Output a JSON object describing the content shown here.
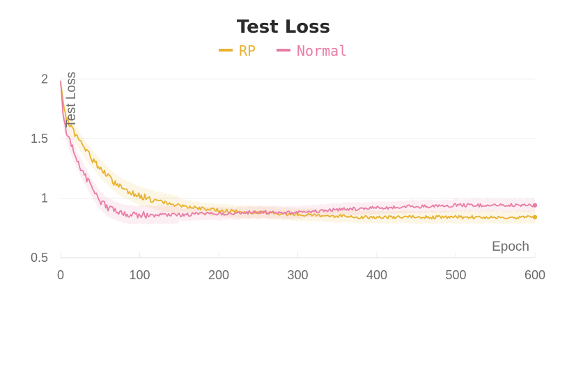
{
  "chart_data": {
    "type": "line",
    "title": "Test Loss",
    "xlabel": "Epoch",
    "ylabel": "Test Loss",
    "xlim": [
      0,
      600
    ],
    "ylim": [
      0.5,
      2.05
    ],
    "xticks": [
      0,
      100,
      200,
      300,
      400,
      500,
      600
    ],
    "yticks": [
      0.5,
      1,
      1.5,
      2
    ],
    "ytick_labels": [
      "0.5",
      "1",
      "1.5",
      "2"
    ],
    "grid": true,
    "legend_position": "top-center",
    "series": [
      {
        "name": "RP",
        "color": "#e8b12f",
        "x": [
          0,
          5,
          10,
          15,
          20,
          30,
          40,
          50,
          60,
          70,
          80,
          90,
          100,
          120,
          140,
          160,
          180,
          200,
          220,
          240,
          260,
          280,
          300,
          320,
          340,
          360,
          380,
          400,
          420,
          440,
          460,
          480,
          500,
          520,
          540,
          560,
          580,
          600
        ],
        "values": [
          1.95,
          1.7,
          1.64,
          1.58,
          1.52,
          1.42,
          1.33,
          1.25,
          1.18,
          1.12,
          1.08,
          1.05,
          1.02,
          0.98,
          0.95,
          0.93,
          0.91,
          0.9,
          0.89,
          0.88,
          0.88,
          0.87,
          0.86,
          0.86,
          0.85,
          0.85,
          0.84,
          0.84,
          0.84,
          0.84,
          0.84,
          0.84,
          0.84,
          0.84,
          0.84,
          0.84,
          0.84,
          0.84
        ]
      },
      {
        "name": "Normal",
        "color": "#e87ca4",
        "x": [
          0,
          3,
          5,
          8,
          10,
          15,
          20,
          30,
          40,
          50,
          60,
          70,
          80,
          90,
          100,
          120,
          140,
          160,
          180,
          200,
          220,
          240,
          260,
          280,
          300,
          320,
          340,
          360,
          380,
          400,
          420,
          440,
          460,
          480,
          500,
          520,
          540,
          560,
          580,
          600
        ],
        "values": [
          1.97,
          1.72,
          1.62,
          1.55,
          1.5,
          1.42,
          1.33,
          1.2,
          1.08,
          0.98,
          0.92,
          0.89,
          0.87,
          0.86,
          0.86,
          0.86,
          0.86,
          0.86,
          0.87,
          0.87,
          0.87,
          0.88,
          0.88,
          0.88,
          0.88,
          0.89,
          0.9,
          0.91,
          0.91,
          0.92,
          0.92,
          0.93,
          0.93,
          0.93,
          0.94,
          0.94,
          0.94,
          0.94,
          0.94,
          0.94
        ]
      }
    ]
  }
}
